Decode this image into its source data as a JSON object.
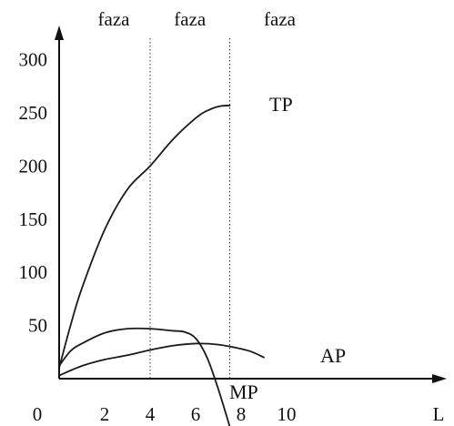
{
  "chart_data": {
    "type": "line",
    "xlabel": "L",
    "ylabel": "",
    "xlim": [
      0,
      12
    ],
    "ylim": [
      0,
      300
    ],
    "x_ticks": [
      "0",
      "2",
      "4",
      "6",
      "8",
      "10"
    ],
    "y_ticks": [
      "50",
      "100",
      "150",
      "200",
      "250",
      "300"
    ],
    "phase_labels": [
      "faza",
      "faza",
      "faza"
    ],
    "phase_boundaries": [
      4,
      7.5
    ],
    "series": [
      {
        "name": "TP",
        "x": [
          0,
          0.5,
          1,
          2,
          3,
          4,
          5,
          6,
          6.5,
          7,
          7.5
        ],
        "y": [
          10,
          50,
          85,
          140,
          178,
          200,
          225,
          245,
          252,
          256,
          257
        ]
      },
      {
        "name": "AP",
        "x": [
          0,
          1,
          2,
          3,
          4,
          5,
          6,
          7,
          8,
          8.5,
          9
        ],
        "y": [
          3,
          12,
          18,
          22,
          27,
          31,
          33,
          32,
          28,
          25,
          20
        ]
      },
      {
        "name": "MP",
        "x": [
          0,
          0.5,
          1,
          2,
          3,
          4,
          5,
          5.5,
          6,
          6.5,
          7,
          7.5
        ],
        "y": [
          12,
          26,
          33,
          43,
          47,
          47,
          45,
          44,
          38,
          20,
          -10,
          -45
        ]
      }
    ]
  }
}
